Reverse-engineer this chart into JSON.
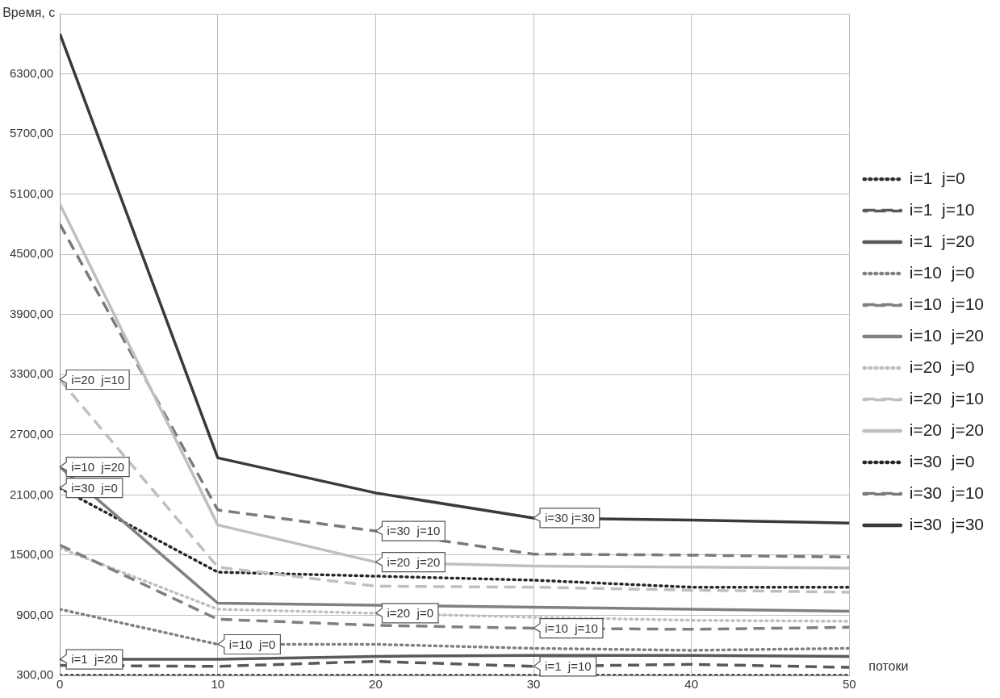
{
  "chart_data": {
    "type": "line",
    "xlabel": "потоки",
    "ylabel": "Время, с",
    "x": [
      0,
      10,
      20,
      30,
      40,
      50
    ],
    "xlim": [
      0,
      50
    ],
    "xticks": [
      0,
      10,
      20,
      30,
      40,
      50
    ],
    "ylim": [
      300,
      6900
    ],
    "yticks": [
      {
        "value": 300,
        "label": "300,00"
      },
      {
        "value": 900,
        "label": "900,00"
      },
      {
        "value": 1500,
        "label": "1500,00"
      },
      {
        "value": 2100,
        "label": "2100,00"
      },
      {
        "value": 2700,
        "label": "2700,00"
      },
      {
        "value": 3300,
        "label": "3300,00"
      },
      {
        "value": 3900,
        "label": "3900,00"
      },
      {
        "value": 4500,
        "label": "4500,00"
      },
      {
        "value": 5100,
        "label": "5100,00"
      },
      {
        "value": 5700,
        "label": "5700,00"
      },
      {
        "value": 6300,
        "label": "6300,00"
      },
      {
        "value": 6900,
        "label": null
      }
    ],
    "grid": true,
    "legend": "right",
    "marker": "none",
    "series": [
      {
        "name": "i=1  j=0",
        "color": "#303030",
        "line_style": "dotted",
        "values": [
          300,
          300,
          300,
          300,
          300,
          300
        ]
      },
      {
        "name": "i=1  j=10",
        "color": "#595959",
        "line_style": "dashed",
        "values": [
          400,
          390,
          440,
          390,
          410,
          380
        ]
      },
      {
        "name": "i=1  j=20",
        "color": "#595959",
        "line_style": "solid",
        "values": [
          460,
          460,
          490,
          500,
          500,
          490
        ]
      },
      {
        "name": "i=10  j=0",
        "color": "#808080",
        "line_style": "dotted",
        "values": [
          960,
          610,
          610,
          570,
          550,
          570
        ]
      },
      {
        "name": "i=10  j=10",
        "color": "#808080",
        "line_style": "dashed",
        "values": [
          1600,
          860,
          800,
          770,
          760,
          780
        ]
      },
      {
        "name": "i=10  j=20",
        "color": "#808080",
        "line_style": "solid",
        "values": [
          2380,
          1020,
          1000,
          980,
          960,
          940
        ]
      },
      {
        "name": "i=20  j=0",
        "color": "#bfbfbf",
        "line_style": "dotted",
        "values": [
          1570,
          960,
          920,
          880,
          850,
          840
        ]
      },
      {
        "name": "i=20  j=10",
        "color": "#bfbfbf",
        "line_style": "dashed",
        "values": [
          3250,
          1380,
          1190,
          1180,
          1150,
          1130
        ]
      },
      {
        "name": "i=20  j=20",
        "color": "#bfbfbf",
        "line_style": "solid",
        "values": [
          5000,
          1800,
          1430,
          1390,
          1380,
          1370
        ]
      },
      {
        "name": "i=30  j=0",
        "color": "#262626",
        "line_style": "dotted",
        "values": [
          2170,
          1330,
          1290,
          1250,
          1180,
          1180
        ]
      },
      {
        "name": "i=30  j=10",
        "color": "#7a7a7a",
        "line_style": "dashed",
        "values": [
          4800,
          1950,
          1740,
          1510,
          1500,
          1480
        ]
      },
      {
        "name": "i=30  j=30",
        "color": "#3a3a3a",
        "line_style": "solid",
        "values": [
          6700,
          2470,
          2120,
          1870,
          1850,
          1820
        ]
      }
    ],
    "annotations": [
      {
        "text": "i=20  j=10",
        "x": 0,
        "y": 3250
      },
      {
        "text": "i=10  j=20",
        "x": 0,
        "y": 2380
      },
      {
        "text": "i=30  j=0",
        "x": 0,
        "y": 2170
      },
      {
        "text": "i=1  j=20",
        "x": 0,
        "y": 460
      },
      {
        "text": "i=10  j=0",
        "x": 10,
        "y": 610
      },
      {
        "text": "i=30  j=10",
        "x": 20,
        "y": 1740
      },
      {
        "text": "i=20  j=20",
        "x": 20,
        "y": 1430
      },
      {
        "text": "i=20  j=0",
        "x": 20,
        "y": 920
      },
      {
        "text": "i=30 j=30",
        "x": 30,
        "y": 1870
      },
      {
        "text": "i=10  j=10",
        "x": 30,
        "y": 770
      },
      {
        "text": "i=1  j=10",
        "x": 30,
        "y": 390
      }
    ]
  }
}
